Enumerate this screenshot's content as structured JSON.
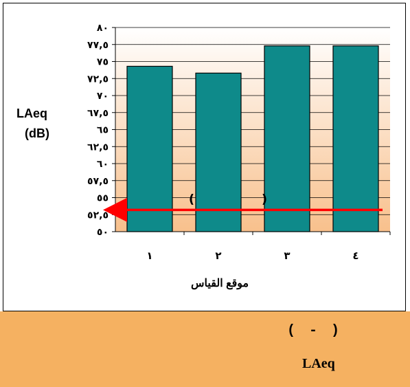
{
  "chart_data": {
    "type": "bar",
    "categories": [
      "١",
      "٢",
      "٣",
      "٤"
    ],
    "values": [
      74.3,
      73.3,
      77.3,
      77.3
    ],
    "ylim": [
      50,
      80
    ],
    "yticks": [
      50,
      52.5,
      55,
      57.5,
      60,
      62.5,
      65,
      67.5,
      70,
      72.5,
      75,
      77.5,
      80
    ],
    "ytick_labels": [
      "٥٠",
      "٥٢,٥",
      "٥٥",
      "٥٧,٥",
      "٦٠",
      "٦٢,٥",
      "٦٥",
      "٦٧,٥",
      "٧٠",
      "٧٢,٥",
      "٧٥",
      "٧٧,٥",
      "٨٠"
    ],
    "ylabel_line1": "LAeq",
    "ylabel_line2": "(dB)",
    "xlabel": "موقع القياس",
    "grid": true,
    "bar_color": "#0e8a8a",
    "reference_line": {
      "value": 53.2,
      "color": "#ff0000",
      "direction": "left-arrow"
    },
    "annotations": [
      "(",
      ")"
    ]
  },
  "caption": {
    "line1": "( - )",
    "line2": "LAeq",
    "background": "#f5b161"
  }
}
